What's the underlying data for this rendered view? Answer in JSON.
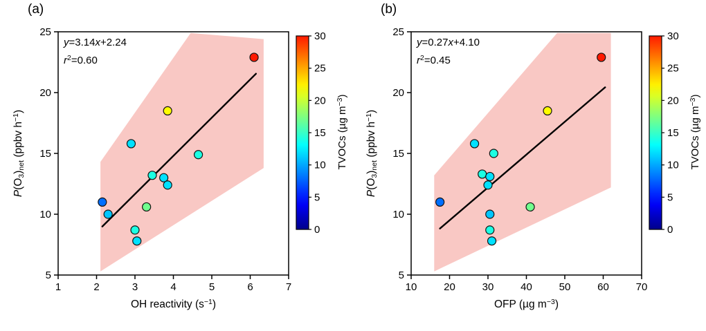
{
  "figure": {
    "panels": [
      {
        "label": "(a)",
        "annotation": {
          "eq_parts": [
            {
              "t": "y",
              "i": 1
            },
            {
              "t": "=3.14"
            },
            {
              "t": "x",
              "i": 1
            },
            {
              "t": "+2.24"
            }
          ],
          "r2_parts": [
            {
              "t": "r",
              "i": 1
            },
            {
              "t": "2",
              "sup": 1
            },
            {
              "t": "=0.60"
            }
          ]
        },
        "xlabel_parts": [
          {
            "t": "OH reactivity (s"
          },
          {
            "t": "−1",
            "sup": 1
          },
          {
            "t": ")"
          }
        ],
        "ylabel_parts": [
          {
            "t": "P",
            "i": 1
          },
          {
            "t": "(O"
          },
          {
            "t": "3",
            "sub": 1
          },
          {
            "t": ")"
          },
          {
            "t": "net",
            "sub": 1
          },
          {
            "t": " (ppbv h"
          },
          {
            "t": "−1",
            "sup": 1
          },
          {
            "t": ")"
          }
        ],
        "colorbar_label_parts": [
          {
            "t": "TVOCs (µg m"
          },
          {
            "t": "−3",
            "sup": 1
          },
          {
            "t": ")"
          }
        ]
      },
      {
        "label": "(b)",
        "annotation": {
          "eq_parts": [
            {
              "t": "y",
              "i": 1
            },
            {
              "t": "=0.27"
            },
            {
              "t": "x",
              "i": 1
            },
            {
              "t": "+4.10"
            }
          ],
          "r2_parts": [
            {
              "t": "r",
              "i": 1
            },
            {
              "t": "2",
              "sup": 1
            },
            {
              "t": "=0.45"
            }
          ]
        },
        "xlabel_parts": [
          {
            "t": "OFP (µg m"
          },
          {
            "t": "−3",
            "sup": 1
          },
          {
            "t": ")"
          }
        ],
        "ylabel_parts": [
          {
            "t": "P",
            "i": 1
          },
          {
            "t": "(O"
          },
          {
            "t": "3",
            "sub": 1
          },
          {
            "t": ")"
          },
          {
            "t": "net",
            "sub": 1
          },
          {
            "t": " (ppbv h"
          },
          {
            "t": "−1",
            "sup": 1
          },
          {
            "t": ")"
          }
        ],
        "colorbar_label_parts": [
          {
            "t": "TVOCs (µg m"
          },
          {
            "t": "−3",
            "sup": 1
          },
          {
            "t": ")"
          }
        ]
      }
    ]
  },
  "chart_data": [
    {
      "type": "scatter",
      "panel": "a",
      "title": "(a)",
      "xlabel": "OH reactivity (s⁻¹)",
      "ylabel": "P(O₃)net (ppbv h⁻¹)",
      "xlim": [
        1,
        7
      ],
      "ylim": [
        5,
        25
      ],
      "xticks": [
        1,
        2,
        3,
        4,
        5,
        6,
        7
      ],
      "yticks": [
        5,
        10,
        15,
        20,
        25
      ],
      "grid": false,
      "fit": {
        "equation": "y=3.14x+2.24",
        "slope": 3.14,
        "intercept": 2.24,
        "r2": 0.6,
        "x_start": 2.15,
        "x_end": 6.15,
        "line_color": "#000000"
      },
      "confidence_band": {
        "color": "#f9c8c4",
        "polygon": [
          [
            2.1,
            5.3
          ],
          [
            2.1,
            14.3
          ],
          [
            4.45,
            24.9
          ],
          [
            6.35,
            24.4
          ],
          [
            6.35,
            13.8
          ]
        ]
      },
      "points": [
        {
          "x": 2.15,
          "y": 11.0,
          "tvoc": 8
        },
        {
          "x": 2.3,
          "y": 10.0,
          "tvoc": 11
        },
        {
          "x": 2.9,
          "y": 15.8,
          "tvoc": 12
        },
        {
          "x": 3.0,
          "y": 8.7,
          "tvoc": 14
        },
        {
          "x": 3.05,
          "y": 7.8,
          "tvoc": 12
        },
        {
          "x": 3.3,
          "y": 10.6,
          "tvoc": 17
        },
        {
          "x": 3.45,
          "y": 13.2,
          "tvoc": 14
        },
        {
          "x": 3.75,
          "y": 13.0,
          "tvoc": 12
        },
        {
          "x": 3.85,
          "y": 12.4,
          "tvoc": 12
        },
        {
          "x": 3.85,
          "y": 18.5,
          "tvoc": 22
        },
        {
          "x": 4.65,
          "y": 14.9,
          "tvoc": 14
        },
        {
          "x": 6.1,
          "y": 22.9,
          "tvoc": 30
        }
      ],
      "colorbar": {
        "label": "TVOCs (µg m⁻³)",
        "min": 0,
        "max": 30,
        "ticks": [
          0,
          5,
          10,
          15,
          20,
          25,
          30
        ],
        "colormap": "jet"
      }
    },
    {
      "type": "scatter",
      "panel": "b",
      "title": "(b)",
      "xlabel": "OFP (µg m⁻³)",
      "ylabel": "P(O₃)net (ppbv h⁻¹)",
      "xlim": [
        10,
        70
      ],
      "ylim": [
        5,
        25
      ],
      "xticks": [
        10,
        20,
        30,
        40,
        50,
        60,
        70
      ],
      "yticks": [
        5,
        10,
        15,
        20,
        25
      ],
      "grid": false,
      "fit": {
        "equation": "y=0.27x+4.10",
        "slope": 0.27,
        "intercept": 4.1,
        "r2": 0.45,
        "x_start": 17.5,
        "x_end": 60.5,
        "line_color": "#000000"
      },
      "confidence_band": {
        "color": "#f9c8c4",
        "polygon": [
          [
            16,
            5.3
          ],
          [
            16,
            13.2
          ],
          [
            48,
            24.9
          ],
          [
            62,
            24.9
          ],
          [
            62,
            12.2
          ]
        ]
      },
      "points": [
        {
          "x": 17.5,
          "y": 11.0,
          "tvoc": 8
        },
        {
          "x": 30.5,
          "y": 10.0,
          "tvoc": 11
        },
        {
          "x": 26.5,
          "y": 15.8,
          "tvoc": 12
        },
        {
          "x": 30.5,
          "y": 8.7,
          "tvoc": 14
        },
        {
          "x": 31.0,
          "y": 7.8,
          "tvoc": 12
        },
        {
          "x": 41.0,
          "y": 10.6,
          "tvoc": 17
        },
        {
          "x": 28.5,
          "y": 13.3,
          "tvoc": 14
        },
        {
          "x": 30.5,
          "y": 13.1,
          "tvoc": 12
        },
        {
          "x": 30.0,
          "y": 12.4,
          "tvoc": 12
        },
        {
          "x": 45.5,
          "y": 18.5,
          "tvoc": 22
        },
        {
          "x": 31.5,
          "y": 15.0,
          "tvoc": 14
        },
        {
          "x": 59.5,
          "y": 22.9,
          "tvoc": 30
        }
      ],
      "colorbar": {
        "label": "TVOCs (µg m⁻³)",
        "min": 0,
        "max": 30,
        "ticks": [
          0,
          5,
          10,
          15,
          20,
          25,
          30
        ],
        "colormap": "jet"
      }
    }
  ]
}
